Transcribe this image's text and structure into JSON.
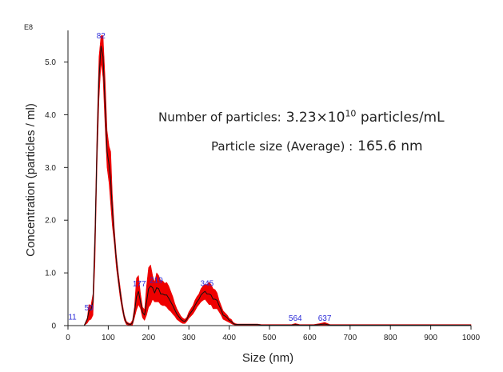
{
  "chart_data": {
    "type": "area",
    "multiplier_label": "E8",
    "xlabel": "Size (nm)",
    "ylabel": "Concentration (particles / ml)",
    "xlim": [
      0,
      1000
    ],
    "ylim": [
      0,
      5.6
    ],
    "xticks": [
      0,
      100,
      200,
      300,
      400,
      500,
      600,
      700,
      800,
      900,
      1000
    ],
    "xtick_labels": [
      "0",
      "100",
      "200",
      "300",
      "400",
      "500",
      "600",
      "700",
      "800",
      "900",
      "1000"
    ],
    "yticks": [
      0,
      1.0,
      2.0,
      3.0,
      4.0,
      5.0
    ],
    "ytick_labels": [
      "0",
      "1.0",
      "2.0",
      "3.0",
      "4.0",
      "5.0"
    ],
    "grid": false,
    "colors": {
      "band": "#ee0000",
      "mean_line": "#111111",
      "peak_label": "#2b2bd8"
    },
    "series": [
      {
        "x": [
          0,
          40,
          48,
          52,
          57,
          62,
          67,
          72,
          77,
          82,
          87,
          92,
          97,
          102,
          106,
          110,
          115,
          120,
          125,
          130,
          135,
          140,
          145,
          150,
          155,
          160,
          165,
          170,
          175,
          180,
          185,
          190,
          195,
          200,
          205,
          210,
          215,
          220,
          225,
          230,
          235,
          240,
          245,
          250,
          255,
          260,
          265,
          270,
          275,
          280,
          285,
          290,
          295,
          300,
          305,
          310,
          315,
          320,
          325,
          330,
          335,
          340,
          345,
          350,
          355,
          360,
          365,
          370,
          375,
          380,
          385,
          390,
          395,
          400,
          405,
          410,
          415,
          420,
          430,
          440,
          450,
          460,
          470,
          480,
          490,
          500,
          520,
          540,
          555,
          564,
          575,
          590,
          610,
          625,
          637,
          650,
          665,
          680,
          700,
          750,
          800,
          850,
          900,
          950,
          1000
        ],
        "mean": [
          0,
          0,
          0.12,
          0.28,
          0.3,
          0.45,
          1.6,
          3.4,
          4.7,
          5.3,
          5.1,
          4.2,
          3.3,
          3.05,
          2.75,
          2.2,
          1.7,
          1.25,
          0.9,
          0.6,
          0.35,
          0.15,
          0.05,
          0.03,
          0.02,
          0.05,
          0.25,
          0.55,
          0.65,
          0.45,
          0.25,
          0.2,
          0.45,
          0.7,
          0.75,
          0.72,
          0.62,
          0.72,
          0.7,
          0.6,
          0.6,
          0.58,
          0.58,
          0.52,
          0.45,
          0.38,
          0.3,
          0.22,
          0.17,
          0.12,
          0.09,
          0.08,
          0.12,
          0.2,
          0.25,
          0.3,
          0.38,
          0.45,
          0.5,
          0.58,
          0.62,
          0.65,
          0.6,
          0.6,
          0.58,
          0.5,
          0.5,
          0.48,
          0.38,
          0.3,
          0.2,
          0.18,
          0.15,
          0.1,
          0.08,
          0.04,
          0.02,
          0.02,
          0.02,
          0.02,
          0.02,
          0.02,
          0.02,
          0.01,
          0.01,
          0.01,
          0.01,
          0.01,
          0.01,
          0.02,
          0.01,
          0.01,
          0.01,
          0.02,
          0.03,
          0.01,
          0.01,
          0.01,
          0.01,
          0.01,
          0.01,
          0.01,
          0.01,
          0.01,
          0.01
        ],
        "upper": [
          0,
          0,
          0.15,
          0.4,
          0.38,
          0.6,
          1.9,
          3.7,
          5.1,
          5.5,
          5.5,
          4.7,
          3.7,
          3.4,
          3.3,
          2.5,
          1.85,
          1.35,
          1.0,
          0.7,
          0.42,
          0.2,
          0.08,
          0.05,
          0.04,
          0.1,
          0.35,
          0.9,
          0.95,
          0.6,
          0.35,
          0.3,
          0.75,
          1.1,
          1.15,
          0.95,
          0.82,
          1.0,
          0.95,
          0.85,
          0.85,
          0.8,
          0.82,
          0.75,
          0.65,
          0.55,
          0.42,
          0.32,
          0.25,
          0.18,
          0.14,
          0.12,
          0.16,
          0.26,
          0.32,
          0.38,
          0.48,
          0.55,
          0.6,
          0.7,
          0.75,
          0.78,
          0.78,
          0.82,
          0.78,
          0.7,
          0.68,
          0.62,
          0.48,
          0.38,
          0.28,
          0.24,
          0.2,
          0.14,
          0.12,
          0.06,
          0.04,
          0.03,
          0.03,
          0.03,
          0.03,
          0.03,
          0.03,
          0.02,
          0.02,
          0.02,
          0.02,
          0.02,
          0.02,
          0.04,
          0.02,
          0.02,
          0.02,
          0.04,
          0.06,
          0.02,
          0.02,
          0.02,
          0.02,
          0.02,
          0.02,
          0.02,
          0.02,
          0.02,
          0.02
        ],
        "lower": [
          0,
          0,
          0.05,
          0.1,
          0.12,
          0.2,
          1.2,
          3.0,
          4.3,
          5.0,
          4.7,
          3.8,
          3.0,
          2.7,
          2.3,
          1.9,
          1.55,
          1.1,
          0.8,
          0.5,
          0.28,
          0.1,
          0.02,
          0.01,
          0.0,
          0.01,
          0.15,
          0.3,
          0.4,
          0.32,
          0.15,
          0.1,
          0.2,
          0.35,
          0.4,
          0.5,
          0.45,
          0.45,
          0.45,
          0.4,
          0.38,
          0.38,
          0.35,
          0.3,
          0.27,
          0.22,
          0.18,
          0.12,
          0.09,
          0.06,
          0.04,
          0.04,
          0.08,
          0.14,
          0.18,
          0.22,
          0.28,
          0.35,
          0.4,
          0.45,
          0.48,
          0.5,
          0.45,
          0.4,
          0.4,
          0.32,
          0.32,
          0.32,
          0.26,
          0.2,
          0.12,
          0.1,
          0.08,
          0.06,
          0.04,
          0.02,
          0.01,
          0.01,
          0.01,
          0.01,
          0.01,
          0.01,
          0.01,
          0.0,
          0.0,
          0.0,
          0.0,
          0.0,
          0.0,
          0.01,
          0.0,
          0.0,
          0.0,
          0.01,
          0.01,
          0.0,
          0.0,
          0.0,
          0.0,
          0.0,
          0.0,
          0.0,
          0.0,
          0.0,
          0.0
        ]
      }
    ],
    "peak_labels": [
      {
        "text": "11",
        "x": 11,
        "y": 0.08
      },
      {
        "text": "50",
        "x": 52,
        "y": 0.26
      },
      {
        "text": "82",
        "x": 82,
        "y": 5.42
      },
      {
        "text": "177",
        "x": 177,
        "y": 0.71
      },
      {
        "text": "219",
        "x": 219,
        "y": 0.78
      },
      {
        "text": "345",
        "x": 345,
        "y": 0.72
      },
      {
        "text": "564",
        "x": 564,
        "y": 0.06
      },
      {
        "text": "637",
        "x": 637,
        "y": 0.06
      }
    ]
  },
  "info": {
    "count_label": "Number of particles:",
    "count_base": "3.23×10",
    "count_exponent": "10",
    "count_unit": "particles/mL",
    "size_label": "Particle size (Average) :",
    "size_value": "165.6 nm"
  }
}
